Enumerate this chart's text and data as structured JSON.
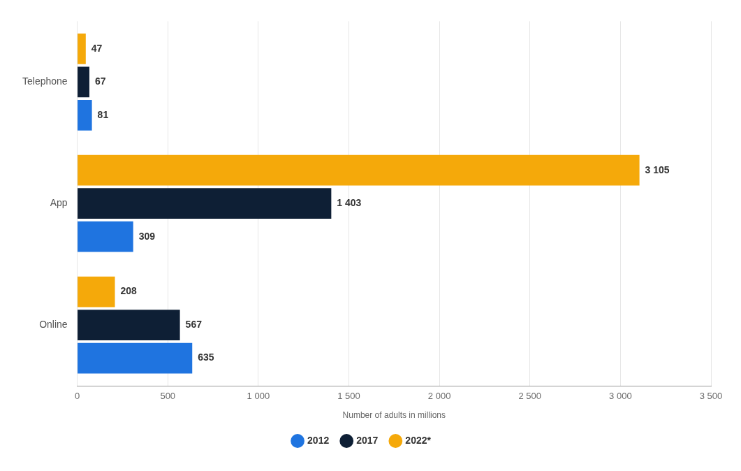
{
  "chart_data": {
    "type": "bar",
    "orientation": "horizontal",
    "categories": [
      "Telephone",
      "App",
      "Online"
    ],
    "xlabel": "Number of adults in millions",
    "series": [
      {
        "name": "2012",
        "color": "#1f74e0",
        "values": [
          81,
          309,
          635
        ],
        "value_labels": [
          "81",
          "309",
          "635"
        ]
      },
      {
        "name": "2017",
        "color": "#0e1f35",
        "values": [
          67,
          1403,
          567
        ],
        "value_labels": [
          "67",
          "1 403",
          "567"
        ]
      },
      {
        "name": "2022*",
        "color": "#f5a90a",
        "values": [
          47,
          3105,
          208
        ],
        "value_labels": [
          "47",
          "3 105",
          "208"
        ]
      }
    ],
    "xlim": [
      0,
      3500
    ],
    "xticks": [
      0,
      500,
      {
        "value": 1000,
        "label": "1 000"
      },
      {
        "value": 1500,
        "label": "1 500"
      },
      {
        "value": 2000,
        "label": "2 000"
      },
      {
        "value": 2500,
        "label": "2 500"
      },
      {
        "value": 3000,
        "label": "3 000"
      },
      {
        "value": 3500,
        "label": "3 500"
      }
    ],
    "grid": "x",
    "legend": "bottom",
    "marker": "circle"
  }
}
